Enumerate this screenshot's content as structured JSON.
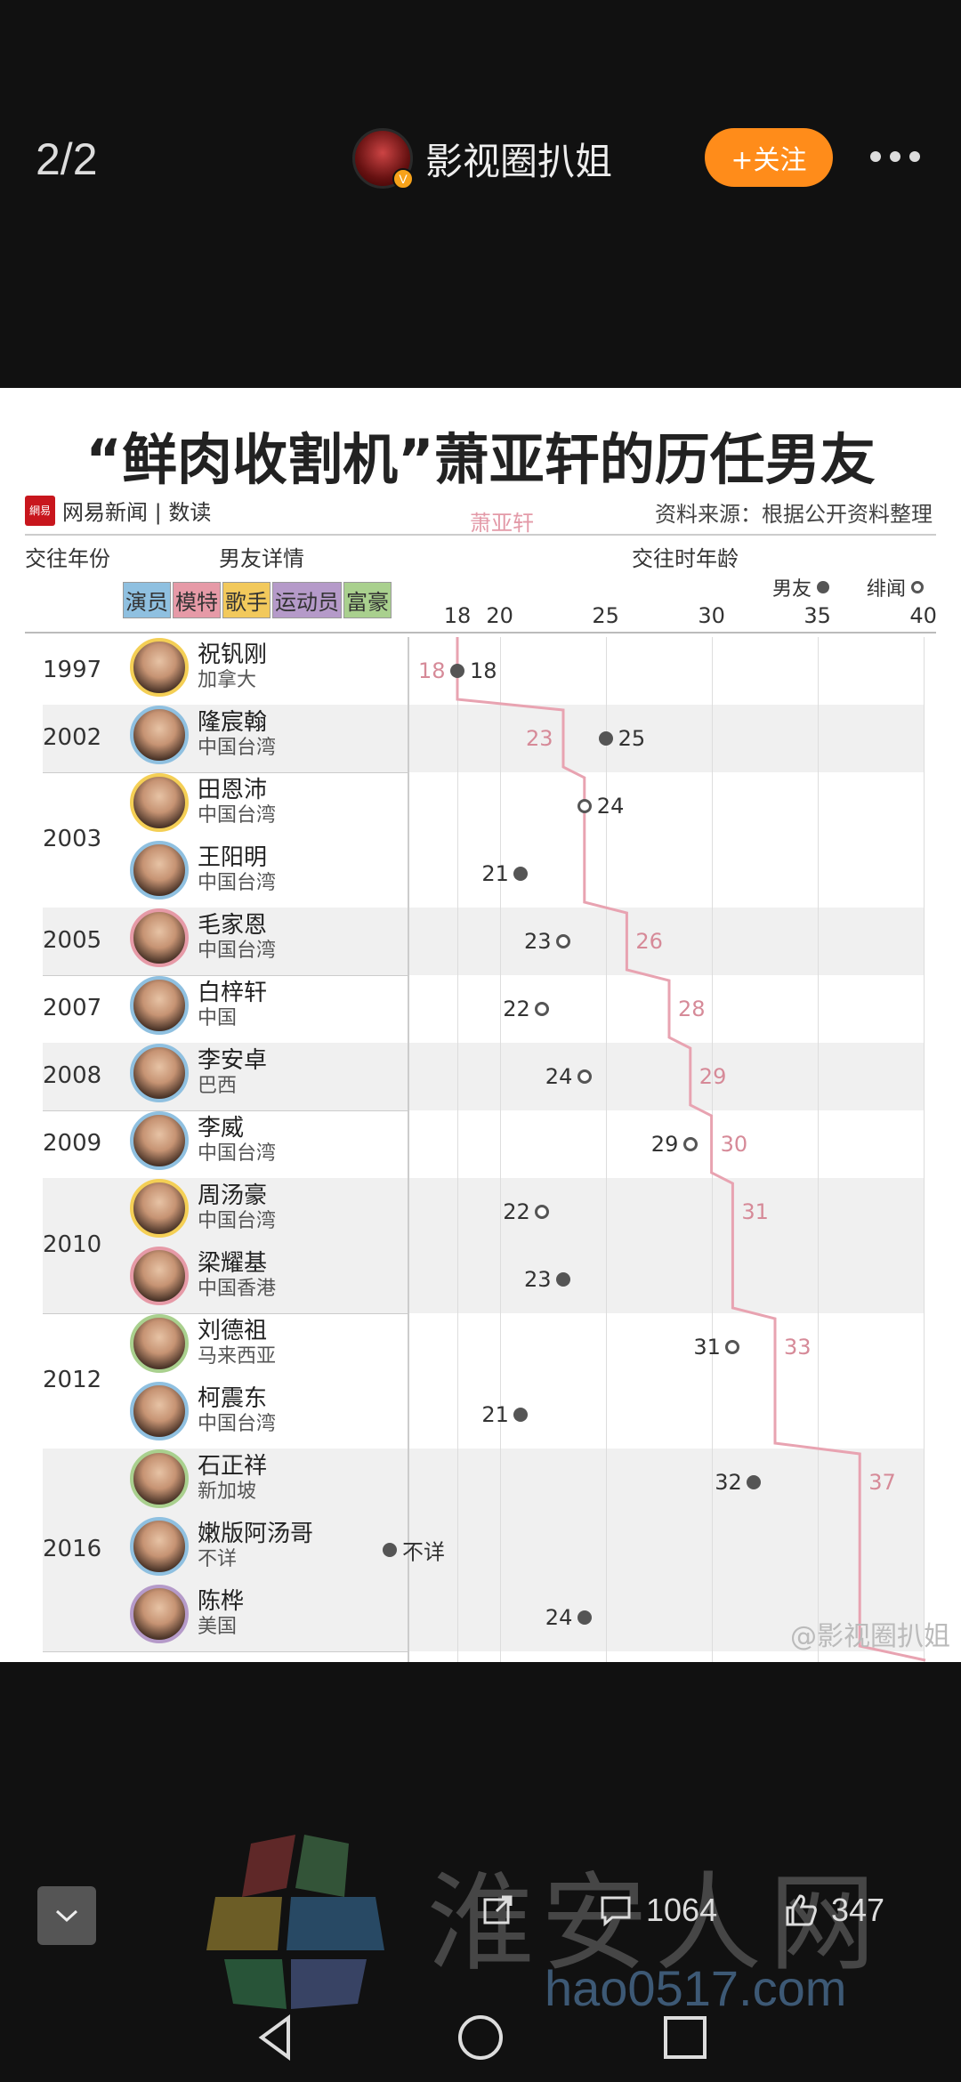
{
  "topbar": {
    "page_counter": "2/2",
    "author_name": "影视圈扒姐",
    "verified_badge": "V",
    "follow_label": "+关注"
  },
  "infographic": {
    "title": "“鲜肉收割机”萧亚轩的历任男友",
    "logo_text": "网易新闻 | 数读",
    "logo_mark": "網易",
    "source": "资料来源：根据公开资料整理",
    "col_year": "交往年份",
    "col_detail": "男友详情",
    "col_age": "交往时年龄",
    "legend_boyfriend": "男友",
    "legend_rumor": "绯闻",
    "her_line_label": "萧亚轩",
    "categories": [
      {
        "label": "演员",
        "color": "#8fc0e0"
      },
      {
        "label": "模特",
        "color": "#e69aa7"
      },
      {
        "label": "歌手",
        "color": "#f2c95c"
      },
      {
        "label": "运动员",
        "color": "#b59ac9"
      },
      {
        "label": "富豪",
        "color": "#a9d08e"
      }
    ],
    "age_ticks": [
      "18",
      "20",
      "25",
      "30",
      "35",
      "40"
    ],
    "years": [
      {
        "label": "1997",
        "rows": [
          0
        ]
      },
      {
        "label": "2002",
        "rows": [
          1
        ]
      },
      {
        "label": "2003",
        "rows": [
          2,
          3
        ]
      },
      {
        "label": "2005",
        "rows": [
          4
        ]
      },
      {
        "label": "2007",
        "rows": [
          5
        ]
      },
      {
        "label": "2008",
        "rows": [
          6
        ]
      },
      {
        "label": "2009",
        "rows": [
          7
        ]
      },
      {
        "label": "2010",
        "rows": [
          8,
          9
        ]
      },
      {
        "label": "2012",
        "rows": [
          10,
          11
        ]
      },
      {
        "label": "2016",
        "rows": [
          12,
          13,
          14
        ]
      }
    ],
    "boyfriends": [
      {
        "name": "祝钒刚",
        "place": "加拿大",
        "age": 18,
        "age_text": "18",
        "type": "filled",
        "her_age": 18,
        "ring": "#f4cf55"
      },
      {
        "name": "隆宸翰",
        "place": "中国台湾",
        "age": 25,
        "age_text": "25",
        "type": "filled",
        "her_age": 23,
        "ring": "#8fc0e0"
      },
      {
        "name": "田恩沛",
        "place": "中国台湾",
        "age": 24,
        "age_text": "24",
        "type": "hollow",
        "her_age": 24,
        "ring": "#f4cf55"
      },
      {
        "name": "王阳明",
        "place": "中国台湾",
        "age": 21,
        "age_text": "21",
        "type": "filled",
        "her_age": 24,
        "ring": "#8fc0e0"
      },
      {
        "name": "毛家恩",
        "place": "中国台湾",
        "age": 23,
        "age_text": "23",
        "type": "hollow",
        "her_age": 26,
        "ring": "#e69aa7"
      },
      {
        "name": "白梓轩",
        "place": "中国",
        "age": 22,
        "age_text": "22",
        "type": "hollow",
        "her_age": 28,
        "ring": "#8fc0e0"
      },
      {
        "name": "李安卓",
        "place": "巴西",
        "age": 24,
        "age_text": "24",
        "type": "hollow",
        "her_age": 29,
        "ring": "#8fc0e0"
      },
      {
        "name": "李威",
        "place": "中国台湾",
        "age": 29,
        "age_text": "29",
        "type": "hollow",
        "her_age": 30,
        "ring": "#8fc0e0"
      },
      {
        "name": "周汤豪",
        "place": "中国台湾",
        "age": 22,
        "age_text": "22",
        "type": "hollow",
        "her_age": 31,
        "ring": "#f4cf55"
      },
      {
        "name": "梁耀基",
        "place": "中国香港",
        "age": 23,
        "age_text": "23",
        "type": "filled",
        "her_age": 31,
        "ring": "#e69aa7"
      },
      {
        "name": "刘德祖",
        "place": "马来西亚",
        "age": 31,
        "age_text": "31",
        "type": "hollow",
        "her_age": 33,
        "ring": "#a9d08e"
      },
      {
        "name": "柯震东",
        "place": "中国台湾",
        "age": 21,
        "age_text": "21",
        "type": "filled",
        "her_age": 33,
        "ring": "#8fc0e0"
      },
      {
        "name": "石正祥",
        "place": "新加坡",
        "age": 32,
        "age_text": "32",
        "type": "filled",
        "her_age": 37,
        "ring": "#a9d08e"
      },
      {
        "name": "嫩版阿汤哥",
        "place": "不详",
        "age": null,
        "age_text": "不详",
        "type": "filled",
        "her_age": 37,
        "ring": "#8fc0e0"
      },
      {
        "name": "陈桦",
        "place": "美国",
        "age": 24,
        "age_text": "24",
        "type": "filled",
        "her_age": 37,
        "ring": "#b59ac9"
      }
    ],
    "watermark": "@影视圈扒姐"
  },
  "bottom": {
    "collapse_icon": "chevron-down-icon",
    "repost_count": "",
    "comment_count": "1064",
    "like_count": "347",
    "watermark_text": "淮安人网",
    "watermark_url": "hao0517.com"
  }
}
